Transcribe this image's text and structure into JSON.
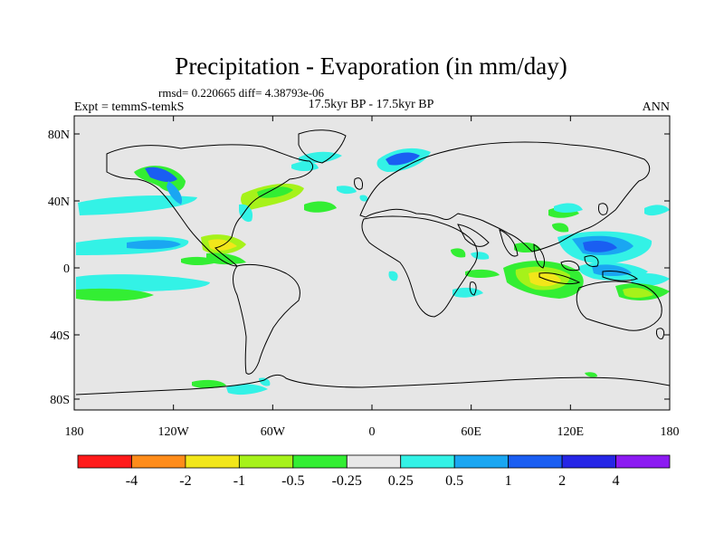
{
  "title": "Precipitation - Evaporation (in mm/day)",
  "stats_line": "rmsd= 0.220665  diff= 4.38793e-06",
  "left_label": "Expt = temmS-temkS",
  "center_label": "17.5kyr BP - 17.5kyr BP",
  "right_label": "ANN",
  "lat_ticks": [
    "80N",
    "40N",
    "0",
    "40S",
    "80S"
  ],
  "lon_ticks": [
    "180",
    "120W",
    "60W",
    "0",
    "60E",
    "120E",
    "180"
  ],
  "colorbar": {
    "colors": [
      "#ff1a1a",
      "#ff8c1a",
      "#f2e61a",
      "#a6f21a",
      "#33ee33",
      "#e8e8e8",
      "#33f2e6",
      "#1aa6f2",
      "#1a5ef2",
      "#2626e6",
      "#8c1af2"
    ],
    "labels": [
      "-4",
      "-2",
      "-1",
      "-0.5",
      "-0.25",
      "0.25",
      "0.5",
      "1",
      "2",
      "4"
    ]
  },
  "map": {
    "ocean_color": "#e6e6e6",
    "coast_color": "#000000"
  }
}
